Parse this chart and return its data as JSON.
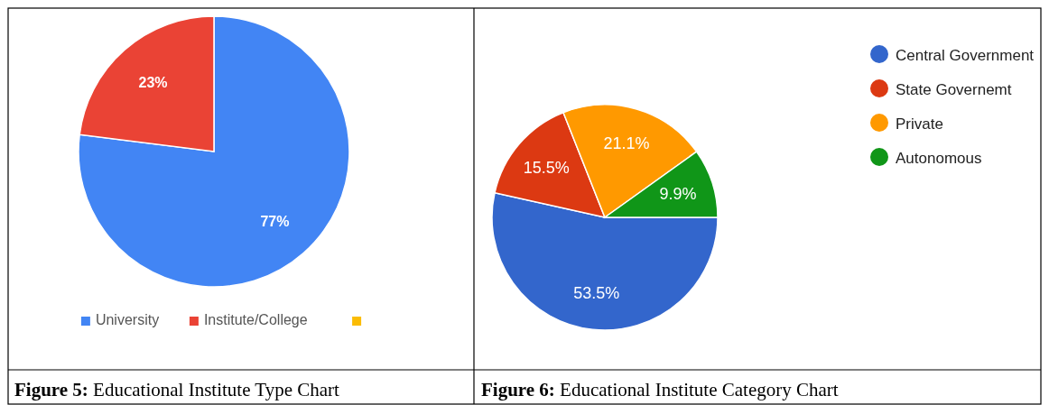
{
  "chart_data": [
    {
      "type": "pie",
      "title": "Figure 5: Educational Institute Type Chart",
      "categories": [
        "University",
        "Institute/College",
        null
      ],
      "values": [
        77,
        23,
        0
      ],
      "colors": [
        "#4285f4",
        "#ea4335",
        "#fbbc04"
      ],
      "value_labels": [
        "77%",
        "23%",
        null
      ],
      "legend": "bottom"
    },
    {
      "type": "pie",
      "title": "Figure 6: Educational Institute Category Chart",
      "categories": [
        "Central Government",
        "State Governemt",
        "Private",
        "Autonomous"
      ],
      "values": [
        53.5,
        15.5,
        21.1,
        9.9
      ],
      "colors": [
        "#3366cc",
        "#dc3912",
        "#ff9900",
        "#109618"
      ],
      "value_labels": [
        "53.5%",
        "15.5%",
        "21.1%",
        "9.9%"
      ],
      "legend": "top right"
    }
  ]
}
